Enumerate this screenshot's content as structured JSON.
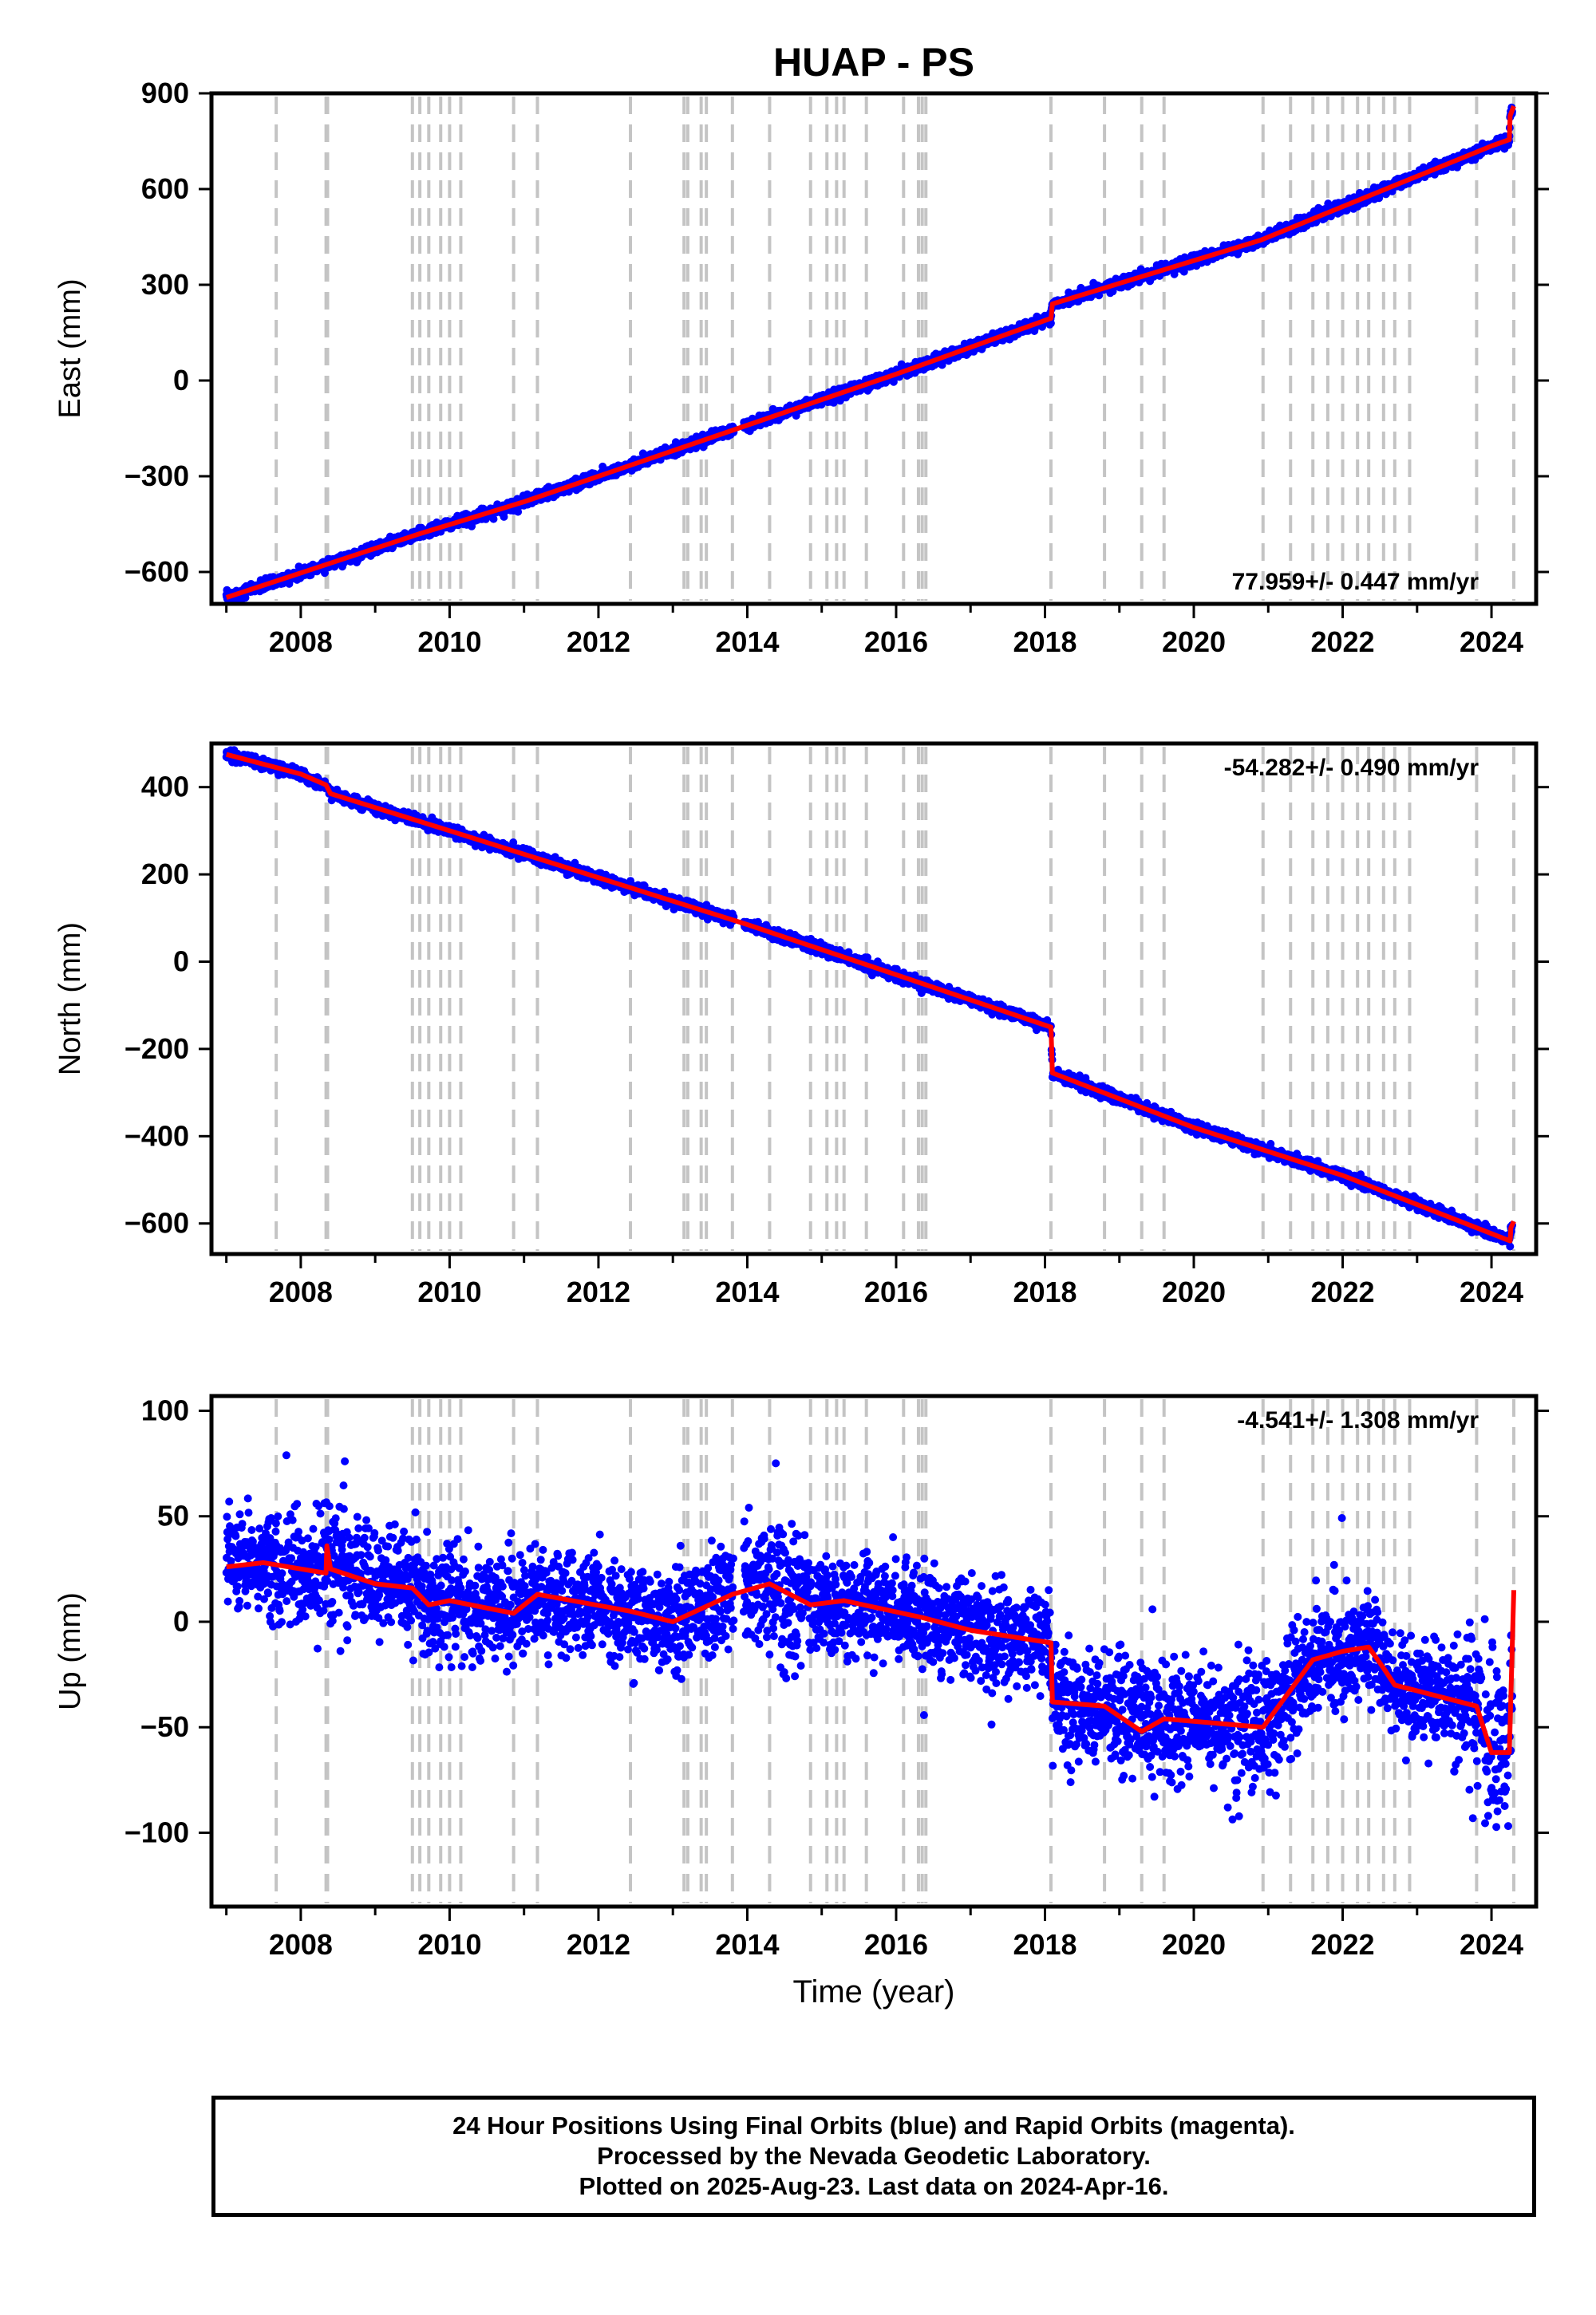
{
  "figure": {
    "title": "HUAP - PS",
    "x_axis_label": "Time (year)",
    "equipment_change_years": [
      2007.67,
      2008.34,
      2008.36,
      2009.5,
      2009.6,
      2009.72,
      2009.88,
      2010.0,
      2010.15,
      2010.86,
      2011.18,
      2012.43,
      2013.15,
      2013.2,
      2013.38,
      2013.45,
      2013.8,
      2014.3,
      2014.85,
      2015.07,
      2015.2,
      2015.3,
      2015.6,
      2016.1,
      2016.3,
      2016.35,
      2016.4,
      2018.08,
      2018.8,
      2019.3,
      2019.6,
      2020.93,
      2021.3,
      2021.6,
      2021.8,
      2022.0,
      2022.2,
      2022.35,
      2022.55,
      2022.7,
      2022.9,
      2023.8,
      2024.3
    ]
  },
  "chart_data": [
    {
      "type": "scatter",
      "name": "east",
      "ylabel": "East (mm)",
      "xlim": [
        2006.8,
        2024.6
      ],
      "ylim": [
        -700,
        900
      ],
      "xticks": [
        2008,
        2010,
        2012,
        2014,
        2016,
        2018,
        2020,
        2022,
        2024
      ],
      "yticks": [
        -600,
        -300,
        0,
        300,
        600,
        900
      ],
      "ytick_labels": [
        "−600",
        "−300",
        "0",
        "300",
        "600",
        "900"
      ],
      "rate_label": "77.959+/- 0.447 mm/yr",
      "rate_position": "bottom-right",
      "model": {
        "x": [
          2007.0,
          2009.6,
          2011.0,
          2014.0,
          2016.0,
          2018.08,
          2018.1,
          2020.9,
          2022.0,
          2024.0,
          2024.24,
          2024.25,
          2024.3
        ],
        "y": [
          -680,
          -480,
          -380,
          -140,
          20,
          195,
          240,
          440,
          545,
          735,
          755,
          830,
          860
        ]
      },
      "scatter_noise_mm": 8
    },
    {
      "type": "scatter",
      "name": "north",
      "ylabel": "North (mm)",
      "xlim": [
        2006.8,
        2024.6
      ],
      "ylim": [
        -670,
        500
      ],
      "xticks": [
        2008,
        2010,
        2012,
        2014,
        2016,
        2018,
        2020,
        2022,
        2024
      ],
      "yticks": [
        -600,
        -400,
        -200,
        0,
        200,
        400
      ],
      "ytick_labels": [
        "−600",
        "−400",
        "−200",
        "0",
        "200",
        "400"
      ],
      "rate_label": "-54.282+/- 0.490 mm/yr",
      "rate_position": "top-right",
      "model": {
        "x": [
          2007.0,
          2008.0,
          2008.34,
          2008.4,
          2010.0,
          2014.0,
          2016.0,
          2018.08,
          2018.1,
          2020.0,
          2022.0,
          2024.25,
          2024.26,
          2024.3
        ],
        "y": [
          475,
          430,
          405,
          385,
          300,
          85,
          -30,
          -150,
          -255,
          -380,
          -490,
          -640,
          -610,
          -595
        ]
      },
      "scatter_noise_mm": 6
    },
    {
      "type": "scatter",
      "name": "up",
      "ylabel": "Up (mm)",
      "xlim": [
        2006.8,
        2024.6
      ],
      "ylim": [
        -135,
        107
      ],
      "xticks": [
        2008,
        2010,
        2012,
        2014,
        2016,
        2018,
        2020,
        2022,
        2024
      ],
      "yticks": [
        -100,
        -50,
        0,
        50,
        100
      ],
      "ytick_labels": [
        "−100",
        "−50",
        "0",
        "50",
        "100"
      ],
      "rate_label": "-4.541+/- 1.308 mm/yr",
      "rate_position": "top-right",
      "model": {
        "x": [
          2007.0,
          2007.5,
          2008.34,
          2008.35,
          2008.4,
          2009.0,
          2009.5,
          2009.72,
          2010.0,
          2010.86,
          2011.18,
          2012.43,
          2013.0,
          2013.8,
          2014.3,
          2014.85,
          2015.3,
          2016.35,
          2017.0,
          2018.08,
          2018.1,
          2018.8,
          2019.3,
          2019.6,
          2020.93,
          2021.6,
          2022.0,
          2022.35,
          2022.55,
          2022.7,
          2023.8,
          2024.0,
          2024.24,
          2024.3
        ],
        "y": [
          26,
          28,
          23,
          36,
          25,
          18,
          16,
          8,
          10,
          4,
          13,
          5,
          0,
          13,
          18,
          8,
          10,
          2,
          -4,
          -10,
          -38,
          -40,
          -52,
          -46,
          -50,
          -18,
          -14,
          -12,
          -22,
          -30,
          -40,
          -62,
          -62,
          15
        ]
      },
      "scatter_noise_mm": 12
    }
  ],
  "footer": {
    "line1": "24 Hour Positions Using Final Orbits (blue) and Rapid Orbits (magenta).",
    "line2": "Processed by the Nevada Geodetic Laboratory.",
    "line3": "Plotted on 2025-Aug-23. Last data on 2024-Apr-16."
  }
}
